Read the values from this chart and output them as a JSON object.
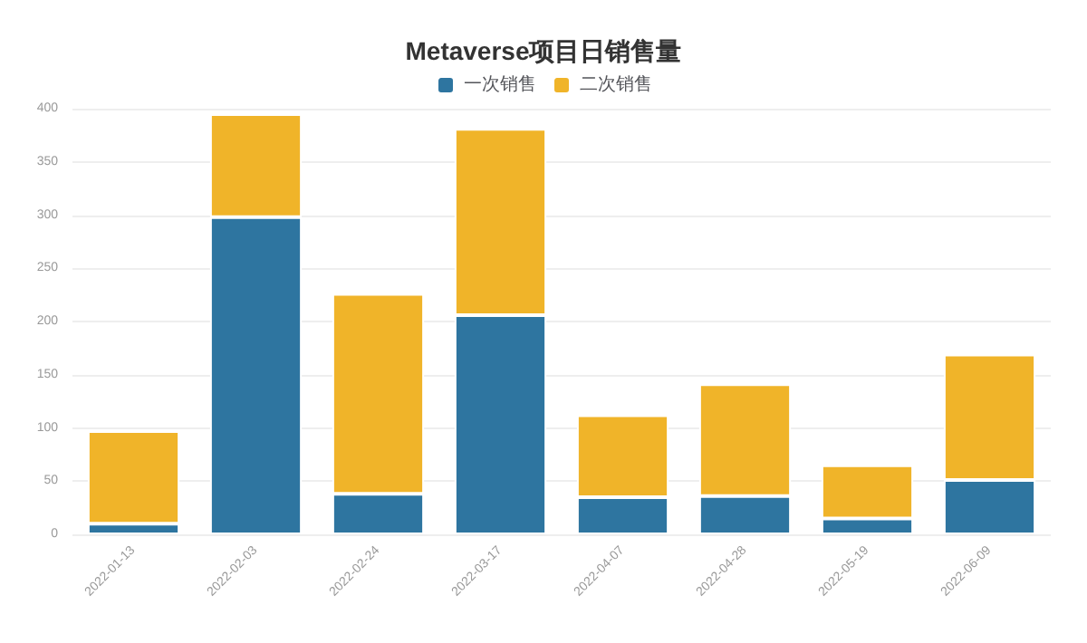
{
  "chart_data": {
    "type": "bar",
    "title": "Metaverse项目日销售量",
    "categories": [
      "2022-01-13",
      "2022-02-03",
      "2022-02-24",
      "2022-03-17",
      "2022-04-07",
      "2022-04-28",
      "2022-05-19",
      "2022-06-09"
    ],
    "series": [
      {
        "name": "一次销售",
        "color": "#2e75a0",
        "values": [
          10,
          298,
          38,
          206,
          35,
          36,
          15,
          51
        ]
      },
      {
        "name": "二次销售",
        "color": "#f0b429",
        "values": [
          87,
          97,
          188,
          175,
          77,
          105,
          50,
          118
        ]
      }
    ],
    "stacked": true,
    "ylim": [
      0,
      400
    ],
    "yticks": [
      0,
      50,
      100,
      150,
      200,
      250,
      300,
      350,
      400
    ],
    "grid": "y",
    "legend": "top"
  }
}
